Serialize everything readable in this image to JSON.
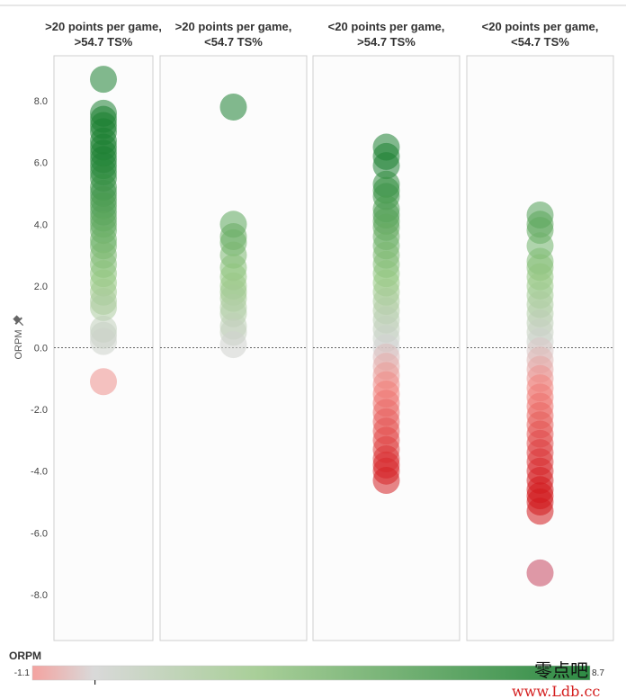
{
  "chart_data": {
    "type": "scatter",
    "ylabel": "ORPM",
    "ylim": [
      -9.5,
      9.5
    ],
    "yticks": [
      "8.0",
      "6.0",
      "4.0",
      "2.0",
      "0.0",
      "-2.0",
      "-4.0",
      "-6.0",
      "-8.0"
    ],
    "ytick_values": [
      8,
      6,
      4,
      2,
      0,
      -2,
      -4,
      -6,
      -8
    ],
    "reference_line": 0,
    "color_legend": {
      "title": "ORPM",
      "min_label": "-1.1",
      "max_label": "8.7",
      "min": -1.1,
      "max": 8.7
    },
    "panels": [
      {
        "line1": ">20 points per game,",
        "line2": ">54.7 TS%",
        "values": [
          8.7,
          7.6,
          7.4,
          7.2,
          7.0,
          6.7,
          6.5,
          6.3,
          6.1,
          5.9,
          5.7,
          5.5,
          5.2,
          5.0,
          4.8,
          4.6,
          4.4,
          4.2,
          4.0,
          3.8,
          3.5,
          3.3,
          3.0,
          2.7,
          2.4,
          2.1,
          1.8,
          1.5,
          1.3,
          0.6,
          0.4,
          0.2,
          -1.1
        ]
      },
      {
        "line1": ">20 points per game,",
        "line2": "<54.7 TS%",
        "values": [
          7.8,
          4.0,
          3.6,
          3.4,
          3.0,
          2.6,
          2.3,
          2.0,
          1.8,
          1.6,
          1.3,
          1.1,
          0.7,
          0.5,
          0.1
        ]
      },
      {
        "line1": "<20 points per game,",
        "line2": ">54.7 TS%",
        "values": [
          6.5,
          6.2,
          5.9,
          5.3,
          5.1,
          4.9,
          4.5,
          4.3,
          4.1,
          3.9,
          3.6,
          3.3,
          3.0,
          2.7,
          2.4,
          2.1,
          1.8,
          1.5,
          1.2,
          0.9,
          0.6,
          0.3,
          0.0,
          -0.3,
          -0.6,
          -0.9,
          -1.2,
          -1.5,
          -1.8,
          -2.1,
          -2.4,
          -2.7,
          -3.0,
          -3.3,
          -3.6,
          -3.8,
          -4.0,
          -4.3
        ]
      },
      {
        "line1": "<20 points per game,",
        "line2": "<54.7 TS%",
        "values": [
          4.3,
          4.0,
          3.8,
          3.3,
          2.8,
          2.6,
          2.3,
          2.0,
          1.7,
          1.4,
          1.1,
          0.8,
          0.5,
          0.2,
          -0.1,
          -0.4,
          -0.7,
          -1.0,
          -1.3,
          -1.6,
          -1.9,
          -2.2,
          -2.5,
          -2.8,
          -3.1,
          -3.4,
          -3.7,
          -4.0,
          -4.3,
          -4.6,
          -4.8,
          -5.0,
          -5.3,
          -7.3
        ]
      }
    ]
  },
  "watermark": {
    "line1": "零点吧",
    "line2": "www.Ldb.cc"
  }
}
